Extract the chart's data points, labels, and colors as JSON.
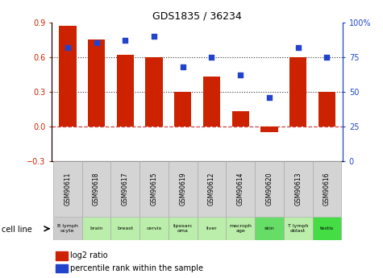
{
  "title": "GDS1835 / 36234",
  "gsm_labels": [
    "GSM90611",
    "GSM90618",
    "GSM90617",
    "GSM90615",
    "GSM90619",
    "GSM90612",
    "GSM90614",
    "GSM90620",
    "GSM90613",
    "GSM90616"
  ],
  "cell_lines": [
    "B lymph\nocyte",
    "brain",
    "breast",
    "cervix",
    "liposarc\noma",
    "liver",
    "macroph\nage",
    "skin",
    "T lymph\noblast",
    "testis"
  ],
  "cell_colors": [
    "#cccccc",
    "#bbeeaa",
    "#bbeeaa",
    "#bbeeaa",
    "#bbeeaa",
    "#bbeeaa",
    "#bbeeaa",
    "#66dd66",
    "#bbeeaa",
    "#44dd44"
  ],
  "log2_ratio": [
    0.87,
    0.75,
    0.62,
    0.6,
    0.3,
    0.43,
    0.13,
    -0.05,
    0.6,
    0.3
  ],
  "percentile_rank": [
    82,
    85,
    87,
    90,
    68,
    75,
    62,
    46,
    82,
    75
  ],
  "ylim_left": [
    -0.3,
    0.9
  ],
  "ylim_right": [
    0,
    100
  ],
  "yticks_left": [
    -0.3,
    0.0,
    0.3,
    0.6,
    0.9
  ],
  "yticks_right": [
    0,
    25,
    50,
    75,
    100
  ],
  "bar_color": "#cc2200",
  "dot_color": "#2244cc",
  "hline_color": "#cc4444",
  "dotted_line_color": "#333333",
  "legend_bar_label": "log2 ratio",
  "legend_dot_label": "percentile rank within the sample",
  "cell_line_label": "cell line"
}
